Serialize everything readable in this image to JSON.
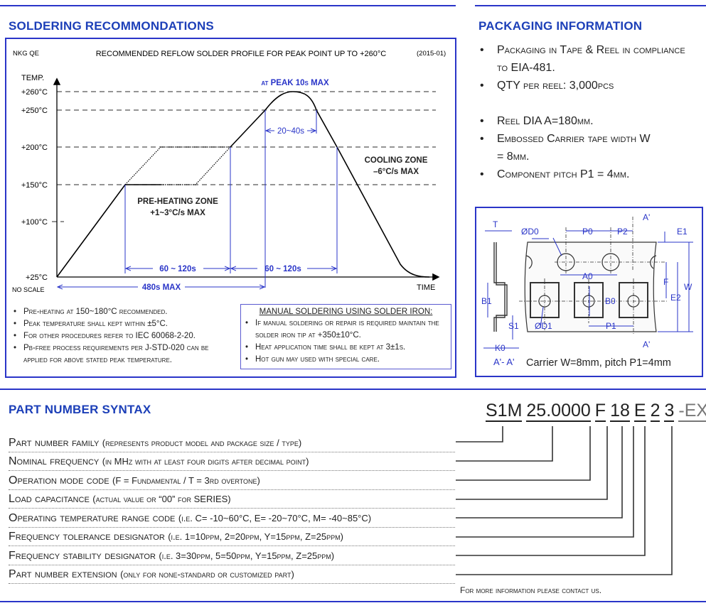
{
  "soldering": {
    "title": "SOLDERING RECOMMONDATIONS",
    "chart": {
      "header_left": "NKG QE",
      "header_title": "RECOMMENDED REFLOW SOLDER PROFILE FOR PEAK POINT UP TO +260°C",
      "header_right": "(2015-01)",
      "y_axis_label": "TEMP.",
      "x_axis_label": "TIME",
      "no_scale": "NO SCALE",
      "y_ticks": [
        "+260°C",
        "+250°C",
        "+200°C",
        "+150°C",
        "+100°C",
        "+25°C"
      ],
      "peak_label": "at PEAK 10s MAX",
      "peak_window": "20~40s",
      "preheat_zone": "PRE-HEATING ZONE",
      "preheat_rate": "+1~3°C/s MAX",
      "cooling_zone": "COOLING ZONE",
      "cooling_rate": "–6°C/s MAX",
      "preheat_time": "60 ~ 120s",
      "reflow_time": "60 ~ 120s",
      "total_time": "480s MAX"
    },
    "notes": [
      "Pre-heating at 150~180°C recommended.",
      "Peak temperature shall kept within ±5°C.",
      "For other procedures refer to IEC 60068-2-20.",
      "Pb-free process requirements per J-STD-020 can be applied for above stated peak temperature."
    ],
    "manual": {
      "title": "MANUAL SOLDERING USING SOLDER IRON:",
      "items": [
        "If manual soldering or repair is required maintain the solder iron tip at +350±10°C.",
        "Heat application time shall be kept at 3±1s.",
        "Hot gun may used with special care."
      ]
    }
  },
  "packaging": {
    "title": "PACKAGING INFORMATION",
    "items": [
      "Packaging in Tape & Reel in compliance to EIA-481.",
      "QTY per reel: 3,000pcs",
      "Reel DIA A=180mm.",
      "Embossed Carrier tape width W = 8mm.",
      "Component pitch P1 = 4mm."
    ],
    "diagram": {
      "labels": {
        "T": "T",
        "D0": "ØD0",
        "P0": "P0",
        "P2": "P2",
        "A_top": "A'",
        "A_bottom": "A'",
        "E1": "E1",
        "F": "F",
        "W": "W",
        "E2": "E2",
        "A0": "A0",
        "B0": "B0",
        "B1": "B1",
        "S1": "S1",
        "D1": "ØD1",
        "P1": "P1",
        "K0": "K0",
        "section": "A'- A'"
      },
      "caption": "Carrier W=8mm, pitch P1=4mm"
    }
  },
  "part_number": {
    "title": "PART NUMBER SYNTAX",
    "segments": [
      "S1M",
      "25.0000",
      "F",
      "18",
      "E",
      "2",
      "3",
      "-EXT"
    ],
    "rows": [
      {
        "label": "Part number family",
        "desc": "(represents product model and package size / type)"
      },
      {
        "label": "Nominal frequency",
        "desc": "(in MHz with at least four digits after decimal point)"
      },
      {
        "label": "Operation mode code",
        "desc": "(F = Fundamental / T = 3rd overtone)"
      },
      {
        "label": "Load capacitance",
        "desc": "(actual value or “00” for SERIES)"
      },
      {
        "label": "Operating temperature range code",
        "desc": "(i.e. C= -10~60°C, E= -20~70°C, M= -40~85°C)"
      },
      {
        "label": "Frequency tolerance designator",
        "desc": "(i.e. 1=10ppm, 2=20ppm, Y=15ppm, Z=25ppm)"
      },
      {
        "label": "Frequency stability designator",
        "desc": "(i.e. 3=30ppm, 5=50ppm, Y=15ppm, Z=25ppm)"
      },
      {
        "label": "Part number extension",
        "desc": "(only for none-standard or customized part)"
      }
    ],
    "footer": "For more information please contact us."
  },
  "colors": {
    "accent": "#2a35c8",
    "title": "#1c3fb8",
    "dimension": "#2a35c8"
  }
}
